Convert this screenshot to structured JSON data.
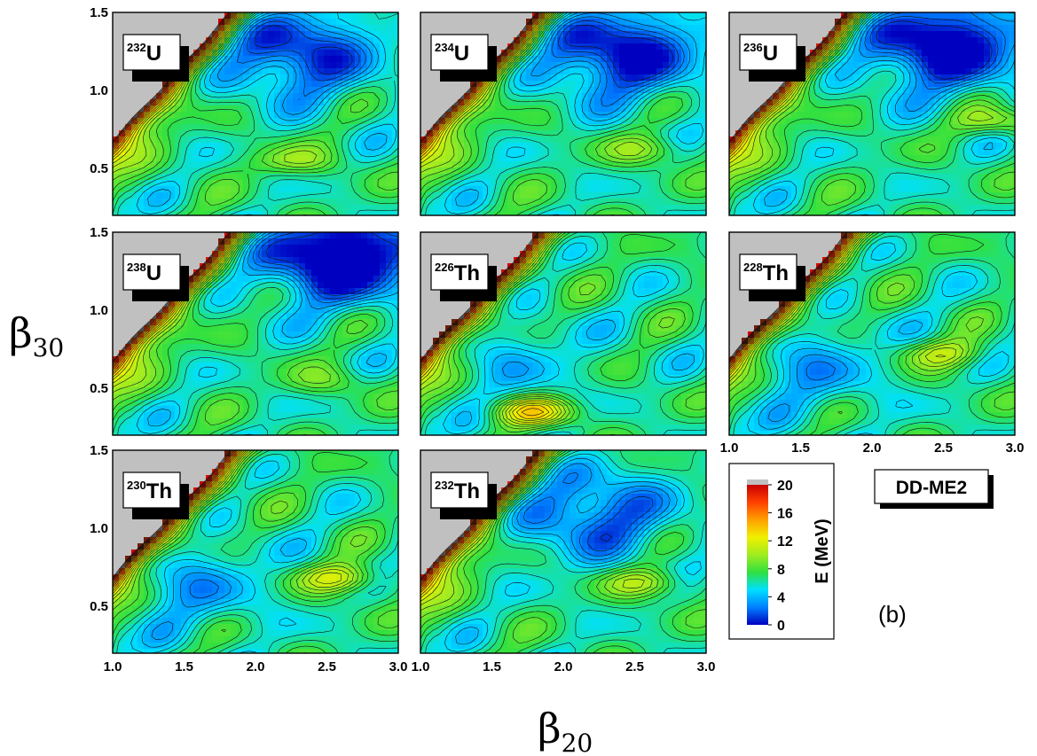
{
  "chart_data": {
    "type": "heatmap",
    "xlabel": "β",
    "xlabel_sub": "20",
    "ylabel": "β",
    "ylabel_sub": "30",
    "xlim": [
      1.0,
      3.0
    ],
    "ylim": [
      0.2,
      1.5
    ],
    "x_ticks": [
      "1.0",
      "1.5",
      "2.0",
      "2.5",
      "3.0"
    ],
    "y_ticks": [
      "0.5",
      "1.0",
      "1.5"
    ],
    "model_label": "DD-ME2",
    "panel_tag": "(b)",
    "colorbar": {
      "label": "E (MeV)",
      "range": [
        0,
        20
      ],
      "ticks": [
        "0",
        "4",
        "8",
        "12",
        "16",
        "20"
      ],
      "colors": [
        "#0000c0",
        "#0080ff",
        "#00e0ff",
        "#30e040",
        "#a0ec20",
        "#f0f000",
        "#ffa000",
        "#ff4000",
        "#c80000"
      ]
    },
    "panels": [
      {
        "mass": "232",
        "element": "U",
        "valley_depth": 6,
        "valley_center": [
          2.3,
          1.25
        ],
        "bump": [
          2.25,
          0.55
        ],
        "bump_height": 3
      },
      {
        "mass": "234",
        "element": "U",
        "valley_depth": 7,
        "valley_center": [
          2.4,
          1.25
        ],
        "bump": [
          2.6,
          0.62
        ],
        "bump_height": 3
      },
      {
        "mass": "236",
        "element": "U",
        "valley_depth": 8,
        "valley_center": [
          2.5,
          1.3
        ],
        "bump": [
          2.9,
          0.8
        ],
        "bump_height": 4
      },
      {
        "mass": "238",
        "element": "U",
        "valley_depth": 9,
        "valley_center": [
          2.6,
          1.35
        ],
        "bump": [
          2.5,
          0.55
        ],
        "bump_height": 2
      },
      {
        "mass": "226",
        "element": "Th",
        "valley_depth": 2,
        "valley_center": [
          1.6,
          0.7
        ],
        "bump": [
          1.8,
          0.35
        ],
        "bump_height": 6
      },
      {
        "mass": "228",
        "element": "Th",
        "valley_depth": 3,
        "valley_center": [
          1.5,
          0.65
        ],
        "bump": [
          2.5,
          0.72
        ],
        "bump_height": 4
      },
      {
        "mass": "230",
        "element": "Th",
        "valley_depth": 3,
        "valley_center": [
          1.5,
          0.65
        ],
        "bump": [
          2.6,
          0.68
        ],
        "bump_height": 5
      },
      {
        "mass": "232",
        "element": "Th",
        "valley_depth": 5,
        "valley_center": [
          2.2,
          1.1
        ],
        "bump": [
          2.6,
          0.65
        ],
        "bump_height": 4
      }
    ]
  }
}
